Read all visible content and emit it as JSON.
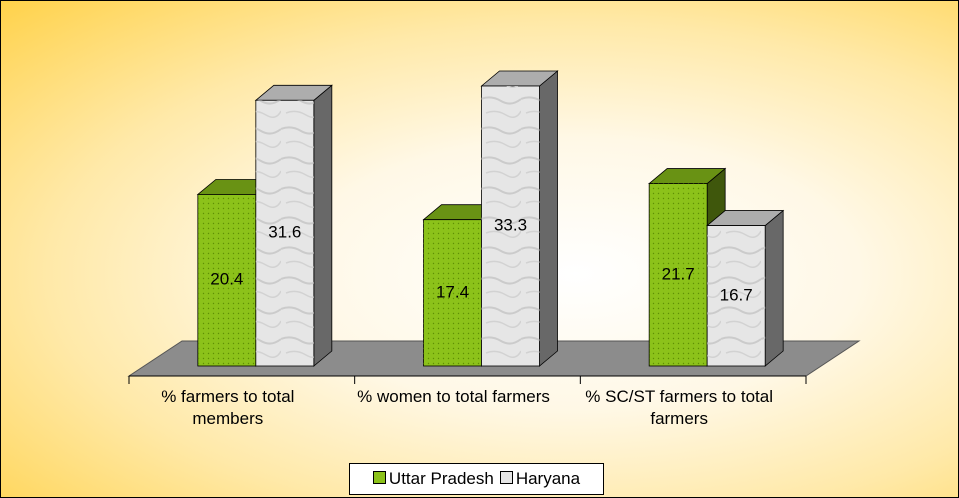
{
  "chart_data": {
    "type": "bar3d",
    "categories": [
      "% farmers to total members",
      "% women to total farmers",
      "% SC/ST farmers to total farmers"
    ],
    "series": [
      {
        "name": "Uttar Pradesh",
        "color": "#8cc21a",
        "values": [
          20.4,
          17.4,
          21.7
        ]
      },
      {
        "name": "Haryana",
        "color": "#e6e6e6",
        "values": [
          31.6,
          33.3,
          16.7
        ]
      }
    ],
    "legend": "bottom"
  }
}
